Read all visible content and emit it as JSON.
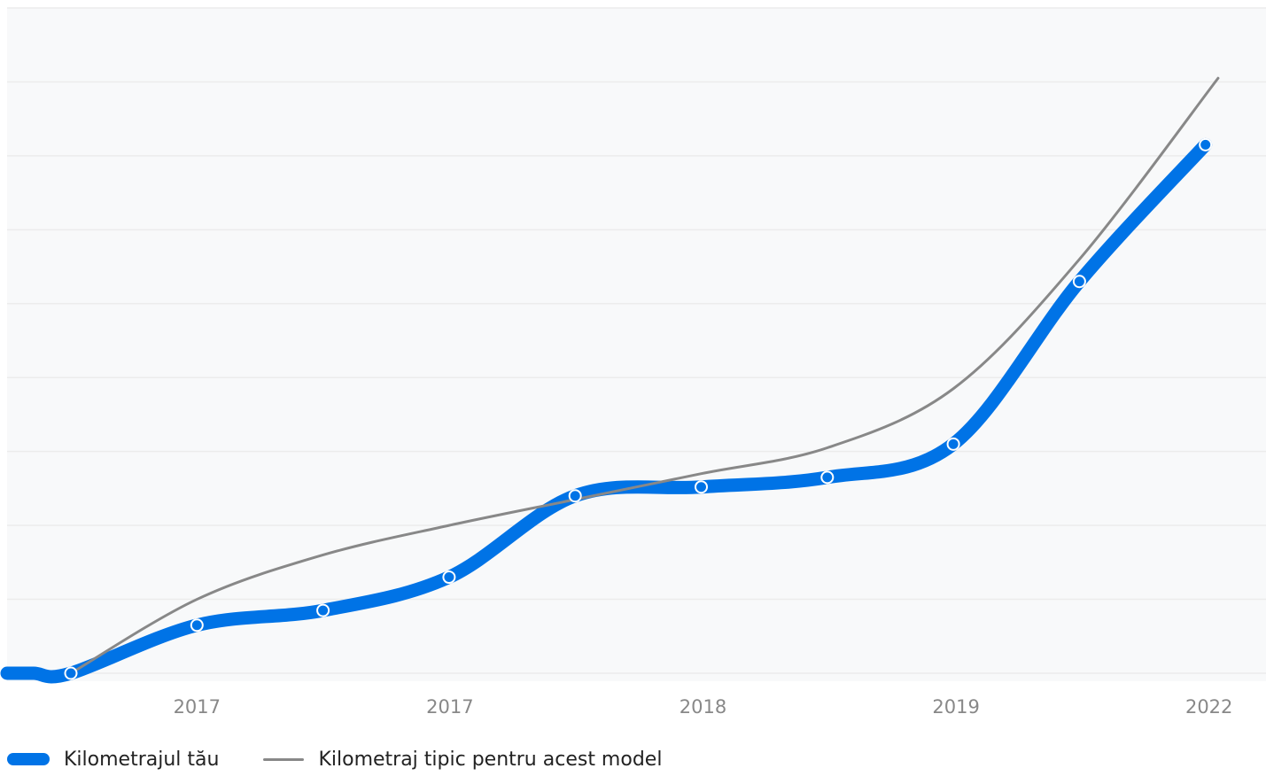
{
  "chart_data": {
    "type": "line",
    "title": "",
    "xlabel": "",
    "ylabel": "",
    "x_tick_labels": [
      "2017",
      "2017",
      "2018",
      "2019",
      "2022"
    ],
    "grid": true,
    "y_tick_labels_visible": false,
    "ylim": [
      0,
      9
    ],
    "series": [
      {
        "name": "Kilometrajul tău",
        "color": "#0073e6",
        "style": "thick-smooth-with-markers",
        "leading_flat_value": 0,
        "x_index": [
          0,
          0.5,
          1,
          1.5,
          2,
          2.5,
          3,
          3.5,
          4,
          4.5
        ],
        "values": [
          0,
          0.65,
          0.85,
          1.3,
          2.4,
          2.52,
          2.65,
          3.1,
          5.3,
          7.15
        ]
      },
      {
        "name": "Kilometraj tipic pentru acest model",
        "color": "#888888",
        "style": "thin-smooth",
        "x_index": [
          0,
          0.5,
          1,
          1.5,
          2,
          2.5,
          3,
          3.5,
          4,
          4.55
        ],
        "values": [
          0,
          1.0,
          1.6,
          2.0,
          2.35,
          2.7,
          3.05,
          3.85,
          5.6,
          8.05
        ]
      }
    ],
    "legend_position": "bottom-left"
  },
  "colors": {
    "background_plot": "#f8f9fa",
    "grid": "#ececec",
    "tick_label": "#888888",
    "marker_fill": "#0073e6",
    "marker_stroke": "#ffffff"
  }
}
